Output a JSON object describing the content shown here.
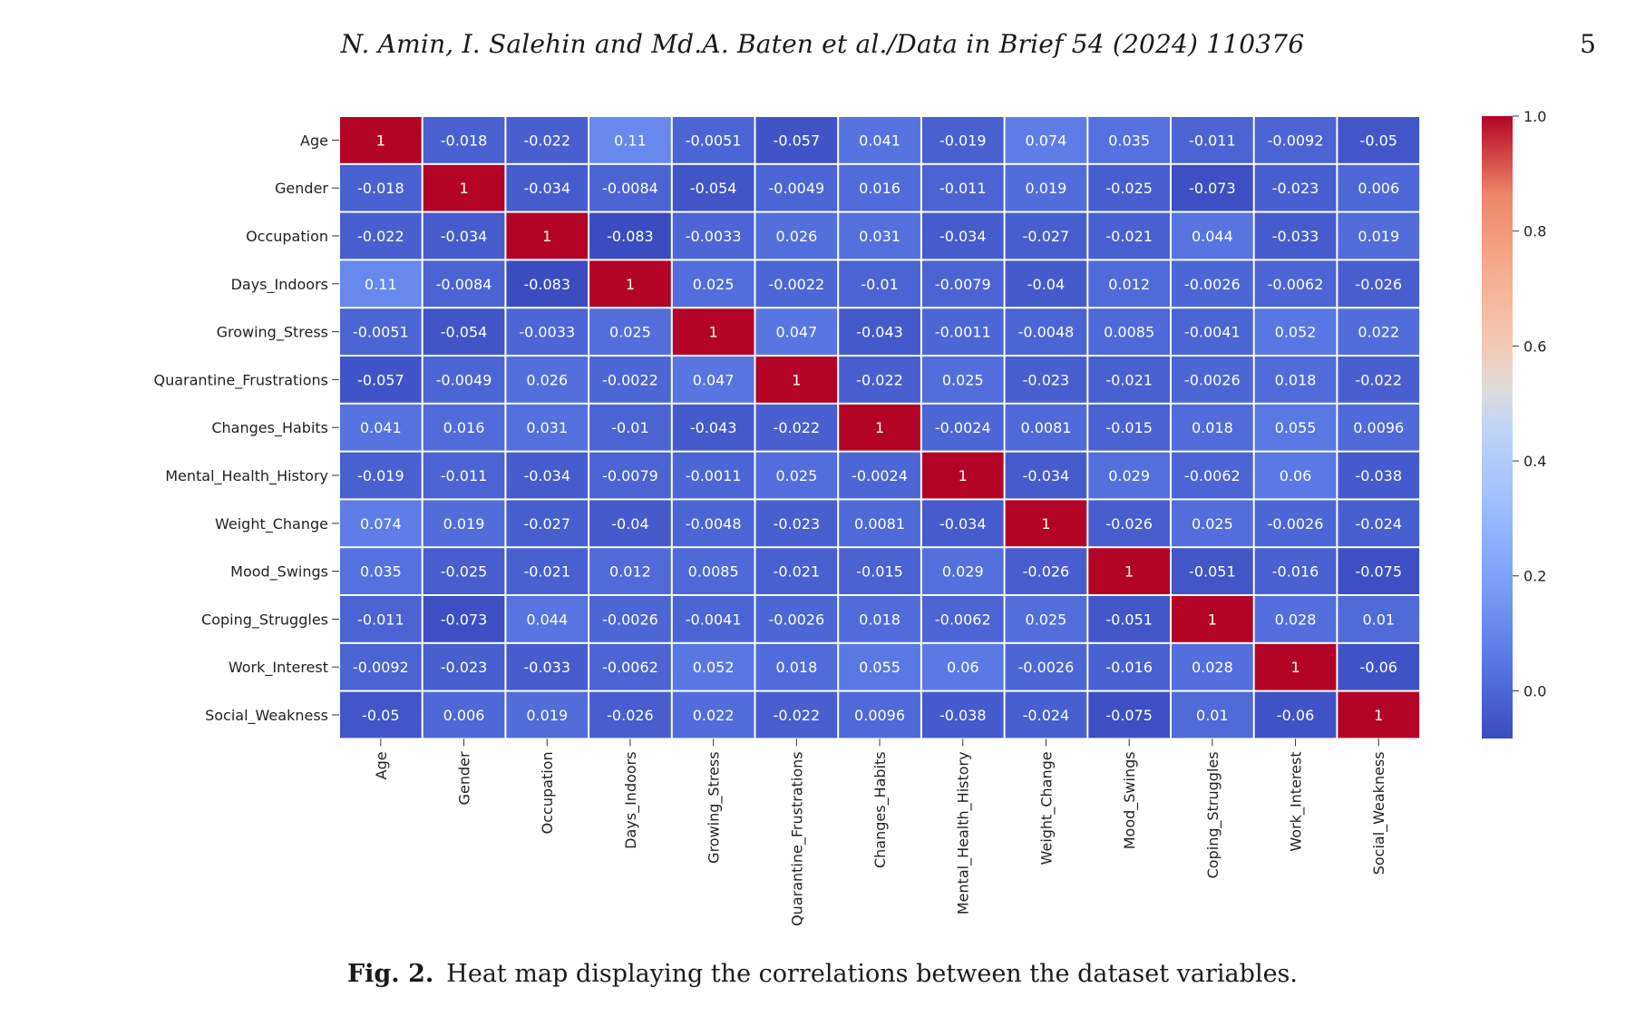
{
  "header": {
    "running_head": "N. Amin, I. Salehin and Md.A. Baten et al./Data in Brief 54 (2024) 110376",
    "page_number": "5"
  },
  "caption": {
    "label": "Fig. 2.",
    "text": "Heat map displaying the correlations between the dataset variables."
  },
  "chart_data": {
    "type": "heatmap",
    "title": "",
    "xlabel": "",
    "ylabel": "",
    "variables": [
      "Age",
      "Gender",
      "Occupation",
      "Days_Indoors",
      "Growing_Stress",
      "Quarantine_Frustrations",
      "Changes_Habits",
      "Mental_Health_History",
      "Weight_Change",
      "Mood_Swings",
      "Coping_Struggles",
      "Work_Interest",
      "Social_Weakness"
    ],
    "matrix": [
      [
        "1",
        "-0.018",
        "-0.022",
        "0.11",
        "-0.0051",
        "-0.057",
        "0.041",
        "-0.019",
        "0.074",
        "0.035",
        "-0.011",
        "-0.0092",
        "-0.05"
      ],
      [
        "-0.018",
        "1",
        "-0.034",
        "-0.0084",
        "-0.054",
        "-0.0049",
        "0.016",
        "-0.011",
        "0.019",
        "-0.025",
        "-0.073",
        "-0.023",
        "0.006"
      ],
      [
        "-0.022",
        "-0.034",
        "1",
        "-0.083",
        "-0.0033",
        "0.026",
        "0.031",
        "-0.034",
        "-0.027",
        "-0.021",
        "0.044",
        "-0.033",
        "0.019"
      ],
      [
        "0.11",
        "-0.0084",
        "-0.083",
        "1",
        "0.025",
        "-0.0022",
        "-0.01",
        "-0.0079",
        "-0.04",
        "0.012",
        "-0.0026",
        "-0.0062",
        "-0.026"
      ],
      [
        "-0.0051",
        "-0.054",
        "-0.0033",
        "0.025",
        "1",
        "0.047",
        "-0.043",
        "-0.0011",
        "-0.0048",
        "0.0085",
        "-0.0041",
        "0.052",
        "0.022"
      ],
      [
        "-0.057",
        "-0.0049",
        "0.026",
        "-0.0022",
        "0.047",
        "1",
        "-0.022",
        "0.025",
        "-0.023",
        "-0.021",
        "-0.0026",
        "0.018",
        "-0.022"
      ],
      [
        "0.041",
        "0.016",
        "0.031",
        "-0.01",
        "-0.043",
        "-0.022",
        "1",
        "-0.0024",
        "0.0081",
        "-0.015",
        "0.018",
        "0.055",
        "0.0096"
      ],
      [
        "-0.019",
        "-0.011",
        "-0.034",
        "-0.0079",
        "-0.0011",
        "0.025",
        "-0.0024",
        "1",
        "-0.034",
        "0.029",
        "-0.0062",
        "0.06",
        "-0.038"
      ],
      [
        "0.074",
        "0.019",
        "-0.027",
        "-0.04",
        "-0.0048",
        "-0.023",
        "0.0081",
        "-0.034",
        "1",
        "-0.026",
        "0.025",
        "-0.0026",
        "-0.024"
      ],
      [
        "0.035",
        "-0.025",
        "-0.021",
        "0.012",
        "0.0085",
        "-0.021",
        "-0.015",
        "0.029",
        "-0.026",
        "1",
        "-0.051",
        "-0.016",
        "-0.075"
      ],
      [
        "-0.011",
        "-0.073",
        "0.044",
        "-0.0026",
        "-0.0041",
        "-0.0026",
        "0.018",
        "-0.0062",
        "0.025",
        "-0.051",
        "1",
        "0.028",
        "0.01"
      ],
      [
        "-0.0092",
        "-0.023",
        "-0.033",
        "-0.0062",
        "0.052",
        "0.018",
        "0.055",
        "0.06",
        "-0.0026",
        "-0.016",
        "0.028",
        "1",
        "-0.06"
      ],
      [
        "-0.05",
        "0.006",
        "0.019",
        "-0.026",
        "0.022",
        "-0.022",
        "0.0096",
        "-0.038",
        "-0.024",
        "-0.075",
        "0.01",
        "-0.06",
        "1"
      ]
    ],
    "colorbar": {
      "colormap": "coolwarm",
      "vmin": -0.083,
      "vmax": 1.0,
      "ticks": [
        "0.0",
        "0.2",
        "0.4",
        "0.6",
        "0.8",
        "1.0"
      ]
    }
  }
}
